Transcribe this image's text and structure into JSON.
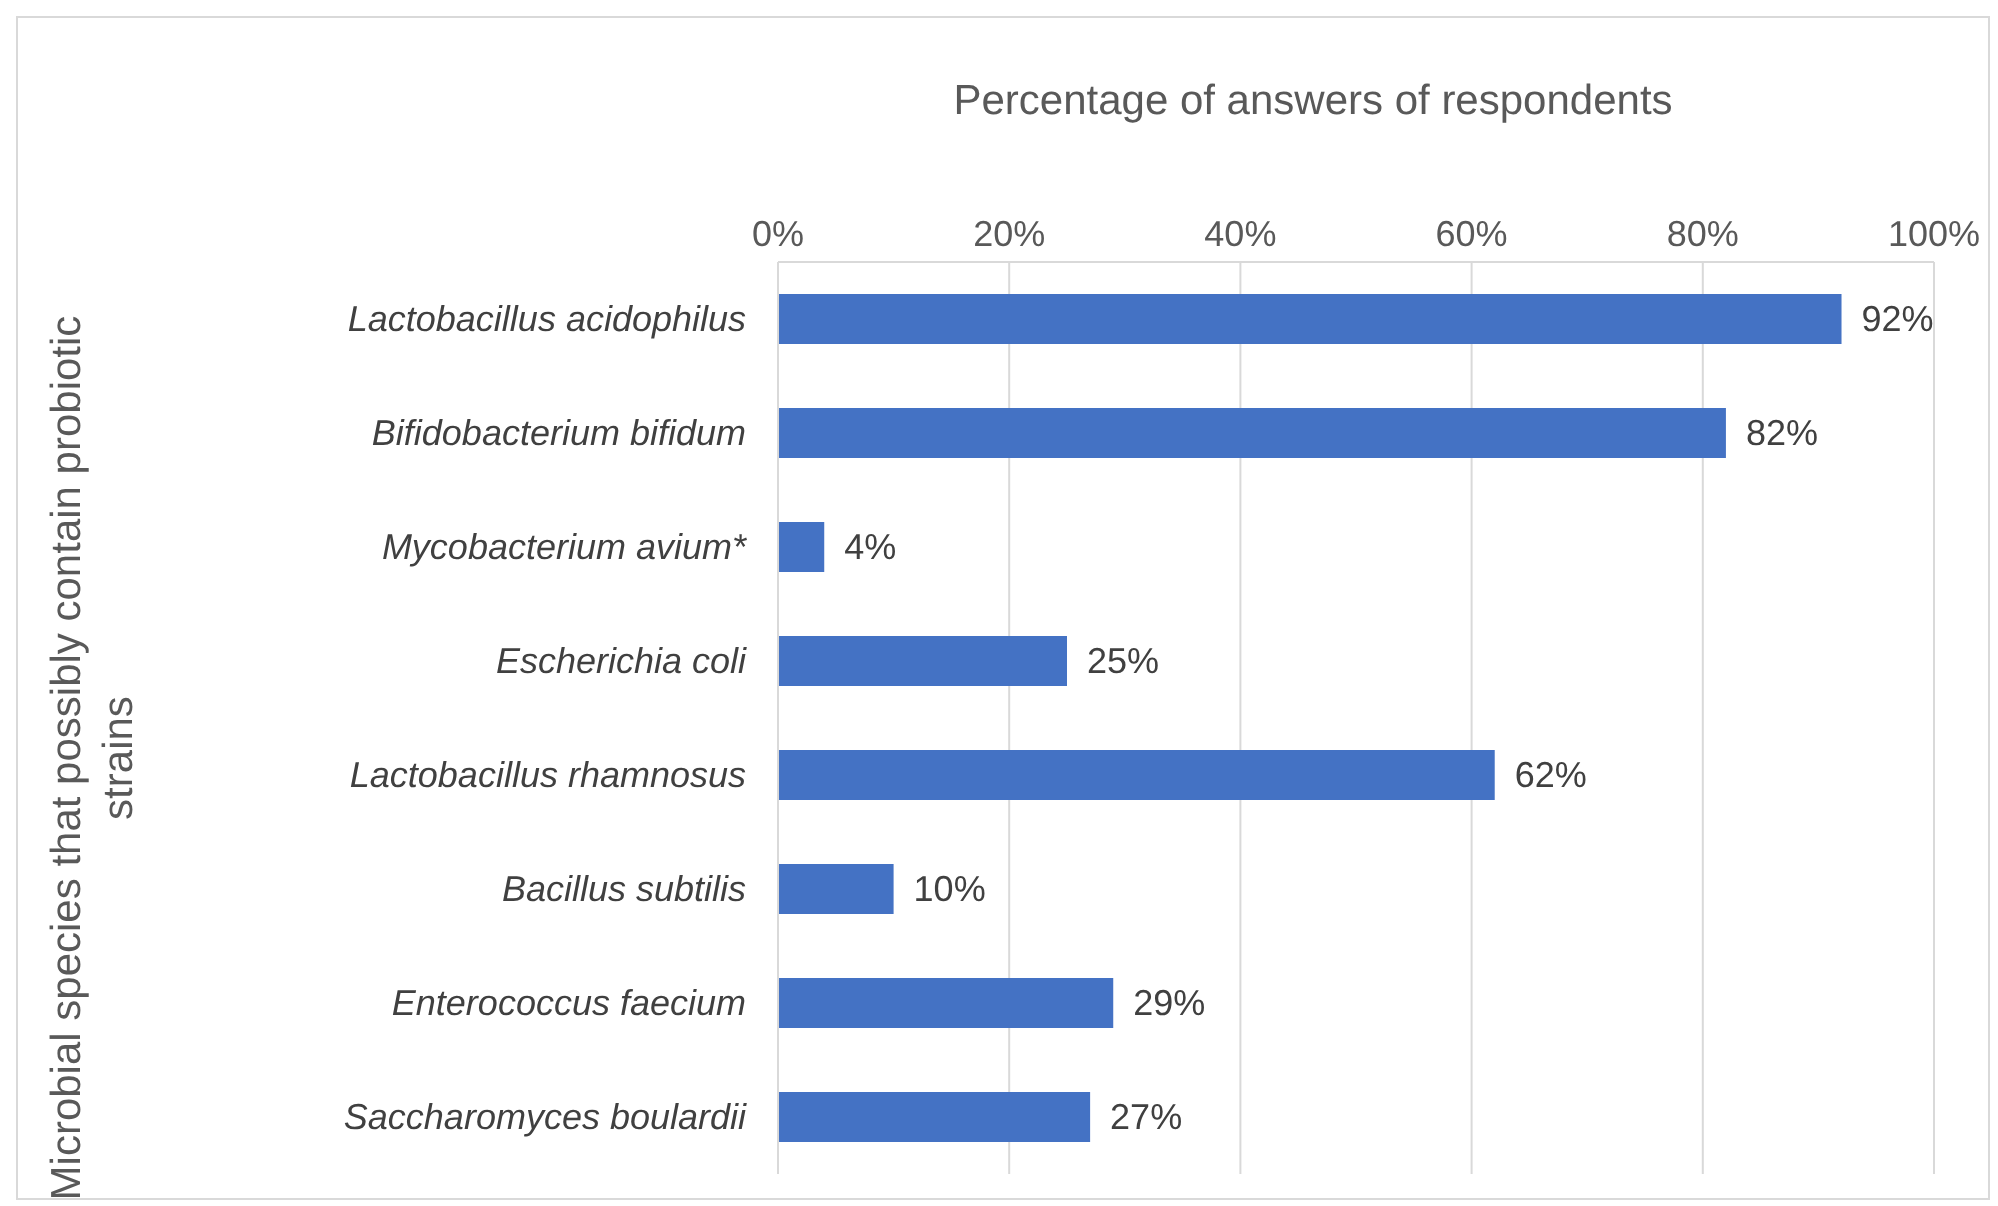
{
  "chart_data": {
    "type": "bar",
    "orientation": "horizontal",
    "xlabel": "Percentage of answers of respondents",
    "ylabel": "Microbial species that possibly contain probiotic strains",
    "categories": [
      "Lactobacillus acidophilus",
      "Bifidobacterium bifidum",
      "Mycobacterium avium*",
      "Escherichia coli",
      "Lactobacillus rhamnosus",
      "Bacillus subtilis",
      "Enterococcus faecium",
      "Saccharomyces boulardii"
    ],
    "values": [
      92,
      82,
      4,
      25,
      62,
      10,
      29,
      27
    ],
    "value_labels": [
      "92%",
      "82%",
      "4%",
      "25%",
      "62%",
      "10%",
      "29%",
      "27%"
    ],
    "color": "#4472c4",
    "xlim": [
      0,
      100
    ],
    "xticks": [
      {
        "value": 0,
        "label": "0%"
      },
      {
        "value": 20,
        "label": "20%"
      },
      {
        "value": 40,
        "label": "40%"
      },
      {
        "value": 60,
        "label": "60%"
      },
      {
        "value": 80,
        "label": "80%"
      },
      {
        "value": 100,
        "label": "100%"
      }
    ],
    "grid": "x",
    "legend": false
  }
}
